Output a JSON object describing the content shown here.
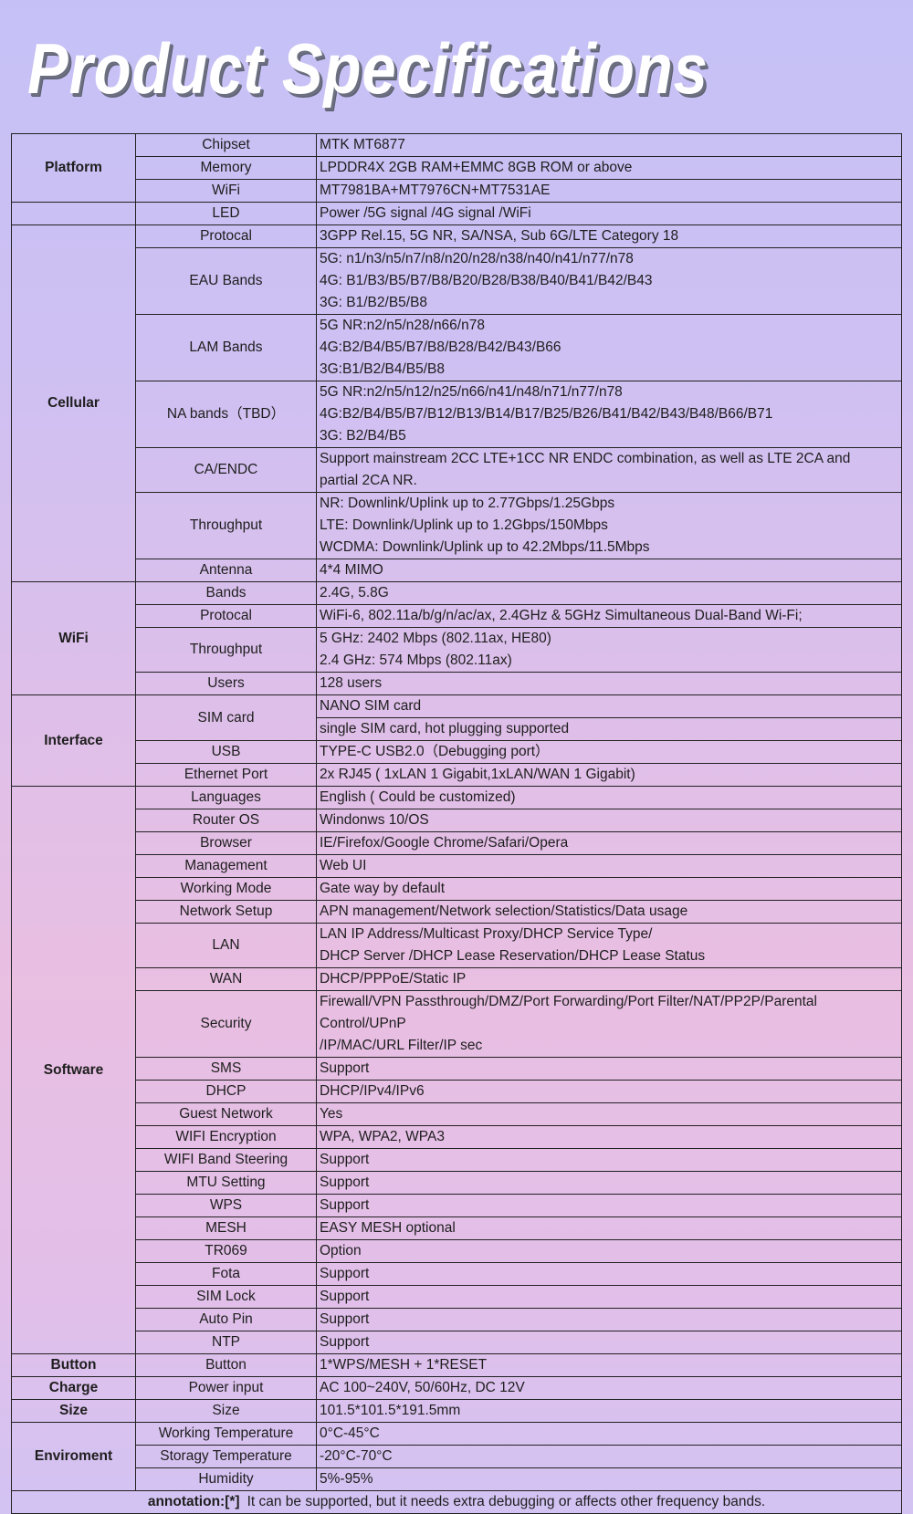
{
  "title": "Product Specifications",
  "sections": [
    {
      "name": "Platform",
      "rows": [
        {
          "label": "Chipset",
          "values": [
            [
              "MTK MT6877"
            ]
          ]
        },
        {
          "label": "Memory",
          "values": [
            [
              "LPDDR4X 2GB RAM+EMMC 8GB ROM or above"
            ]
          ]
        },
        {
          "label": "WiFi",
          "values": [
            [
              "MT7981BA+MT7976CN+MT7531AE"
            ]
          ]
        }
      ]
    },
    {
      "name": "",
      "rows": [
        {
          "label": "LED",
          "values": [
            [
              "Power /5G signal /4G signal /WiFi"
            ]
          ]
        }
      ]
    },
    {
      "name": "Cellular",
      "rows": [
        {
          "label": "Protocal",
          "values": [
            [
              "3GPP Rel.15, 5G NR, SA/NSA, Sub 6G/LTE Category 18"
            ]
          ]
        },
        {
          "label": "EAU Bands",
          "values": [
            [
              "5G: n1/n3/n5/n7/n8/n20/n28/n38/n40/n41/n77/n78",
              "4G: B1/B3/B5/B7/B8/B20/B28/B38/B40/B41/B42/B43",
              "3G: B1/B2/B5/B8"
            ]
          ]
        },
        {
          "label": "LAM Bands",
          "values": [
            [
              "5G NR:n2/n5/n28/n66/n78",
              "4G:B2/B4/B5/B7/B8/B28/B42/B43/B66",
              "3G:B1/B2/B4/B5/B8"
            ]
          ]
        },
        {
          "label": "NA bands（TBD）",
          "values": [
            [
              "5G NR:n2/n5/n12/n25/n66/n41/n48/n71/n77/n78",
              "4G:B2/B4/B5/B7/B12/B13/B14/B17/B25/B26/B41/B42/B43/B48/B66/B71",
              "3G: B2/B4/B5"
            ]
          ]
        },
        {
          "label": "CA/ENDC",
          "values": [
            [
              "Support mainstream 2CC LTE+1CC NR ENDC combination, as well as LTE 2CA and",
              "partial 2CA NR."
            ]
          ]
        },
        {
          "label": "Throughput",
          "values": [
            [
              "NR: Downlink/Uplink up to 2.77Gbps/1.25Gbps",
              "LTE: Downlink/Uplink up to 1.2Gbps/150Mbps",
              "WCDMA: Downlink/Uplink up to 42.2Mbps/11.5Mbps"
            ]
          ]
        },
        {
          "label": "Antenna",
          "values": [
            [
              "4*4 MIMO"
            ]
          ]
        }
      ]
    },
    {
      "name": "WiFi",
      "rows": [
        {
          "label": "Bands",
          "values": [
            [
              "2.4G, 5.8G"
            ]
          ]
        },
        {
          "label": "Protocal",
          "values": [
            [
              "WiFi-6, 802.11a/b/g/n/ac/ax, 2.4GHz & 5GHz Simultaneous Dual-Band Wi-Fi;"
            ]
          ]
        },
        {
          "label": "Throughput",
          "values": [
            [
              "5 GHz: 2402 Mbps (802.11ax, HE80)",
              "2.4 GHz: 574 Mbps (802.11ax)"
            ]
          ]
        },
        {
          "label": "Users",
          "values": [
            [
              "128 users"
            ]
          ]
        }
      ]
    },
    {
      "name": "Interface",
      "rows": [
        {
          "label": "SIM card",
          "values": [
            [
              "NANO SIM card"
            ],
            [
              "single SIM card, hot plugging supported"
            ]
          ]
        },
        {
          "label": "USB",
          "values": [
            [
              "TYPE-C USB2.0（Debugging port）"
            ]
          ]
        },
        {
          "label": "Ethernet Port",
          "values": [
            [
              "2x RJ45 ( 1xLAN 1 Gigabit,1xLAN/WAN 1 Gigabit)"
            ]
          ]
        }
      ]
    },
    {
      "name": "Software",
      "rows": [
        {
          "label": "Languages",
          "values": [
            [
              "English ( Could be customized)"
            ]
          ]
        },
        {
          "label": "Router OS",
          "values": [
            [
              "Windonws 10/OS"
            ]
          ]
        },
        {
          "label": "Browser",
          "values": [
            [
              "IE/Firefox/Google Chrome/Safari/Opera"
            ]
          ]
        },
        {
          "label": "Management",
          "values": [
            [
              "Web UI"
            ]
          ]
        },
        {
          "label": "Working Mode",
          "values": [
            [
              "Gate way by default"
            ]
          ]
        },
        {
          "label": "Network Setup",
          "values": [
            [
              "APN management/Network selection/Statistics/Data usage"
            ]
          ]
        },
        {
          "label": "LAN",
          "values": [
            [
              "LAN IP Address/Multicast Proxy/DHCP Service Type/",
              "DHCP Server /DHCP Lease Reservation/DHCP Lease Status"
            ]
          ]
        },
        {
          "label": "WAN",
          "values": [
            [
              "DHCP/PPPoE/Static IP"
            ]
          ]
        },
        {
          "label": "Security",
          "values": [
            [
              "Firewall/VPN Passthrough/DMZ/Port Forwarding/Port Filter/NAT/PP2P/Parental",
              "Control/UPnP",
              "/IP/MAC/URL Filter/IP sec"
            ]
          ]
        },
        {
          "label": "SMS",
          "values": [
            [
              "Support"
            ]
          ]
        },
        {
          "label": "DHCP",
          "values": [
            [
              "DHCP/IPv4/IPv6"
            ]
          ]
        },
        {
          "label": "Guest Network",
          "values": [
            [
              "Yes"
            ]
          ]
        },
        {
          "label": "WIFI Encryption",
          "values": [
            [
              "WPA, WPA2, WPA3"
            ]
          ]
        },
        {
          "label": "WIFI Band Steering",
          "values": [
            [
              "Support"
            ]
          ]
        },
        {
          "label": "MTU Setting",
          "values": [
            [
              "Support"
            ]
          ]
        },
        {
          "label": "WPS",
          "values": [
            [
              "Support"
            ]
          ]
        },
        {
          "label": "MESH",
          "values": [
            [
              "EASY MESH optional"
            ]
          ]
        },
        {
          "label": "TR069",
          "values": [
            [
              "Option"
            ]
          ]
        },
        {
          "label": "Fota",
          "values": [
            [
              "Support"
            ]
          ]
        },
        {
          "label": "SIM Lock",
          "values": [
            [
              "Support"
            ]
          ]
        },
        {
          "label": "Auto Pin",
          "values": [
            [
              "Support"
            ]
          ]
        },
        {
          "label": "NTP",
          "values": [
            [
              "Support"
            ]
          ]
        }
      ]
    },
    {
      "name": "Button",
      "rows": [
        {
          "label": "Button",
          "values": [
            [
              "1*WPS/MESH + 1*RESET"
            ]
          ]
        }
      ]
    },
    {
      "name": "Charge",
      "rows": [
        {
          "label": "Power input",
          "values": [
            [
              "AC 100~240V, 50/60Hz, DC 12V"
            ]
          ]
        }
      ]
    },
    {
      "name": "Size",
      "rows": [
        {
          "label": "Size",
          "values": [
            [
              "101.5*101.5*191.5mm"
            ]
          ]
        }
      ]
    },
    {
      "name": "Enviroment",
      "rows": [
        {
          "label": "Working Temperature",
          "values": [
            [
              "0°C-45°C"
            ]
          ]
        },
        {
          "label": "Storagy Temperature",
          "values": [
            [
              "-20°C-70°C"
            ]
          ]
        },
        {
          "label": "Humidity",
          "values": [
            [
              "5%-95%"
            ]
          ]
        }
      ]
    }
  ],
  "annotation": {
    "label": "annotation:[*]",
    "text": "It can be supported, but it needs extra debugging or affects other frequency bands."
  }
}
